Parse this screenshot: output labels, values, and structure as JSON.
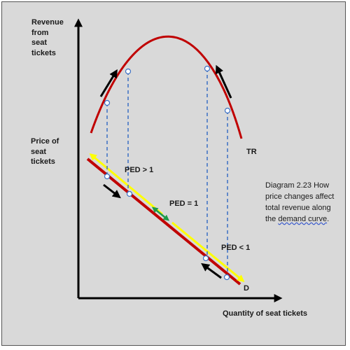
{
  "labels": {
    "revenue_axis": "Revenue\nfrom\nseat\ntickets",
    "price_axis": "Price of\nseat\ntickets",
    "quantity_axis": "Quantity of seat tickets",
    "tr_curve": "TR",
    "demand_curve": "D",
    "ped_elastic": "PED > 1",
    "ped_unit": "PED = 1",
    "ped_inelastic": "PED < 1"
  },
  "caption": {
    "line1": "Diagram 2.23 How price changes affect total revenue along the",
    "line2": "demand curve",
    "line3": "."
  },
  "colors": {
    "background": "#d9d9d9",
    "tr_curve": "#c00000",
    "demand_curve": "#c00000",
    "highlight": "#ffff00",
    "guide_lines": "#3a6fc4",
    "arrows": "#000000",
    "unit_elastic_arrow": "#1e9a4a"
  }
}
